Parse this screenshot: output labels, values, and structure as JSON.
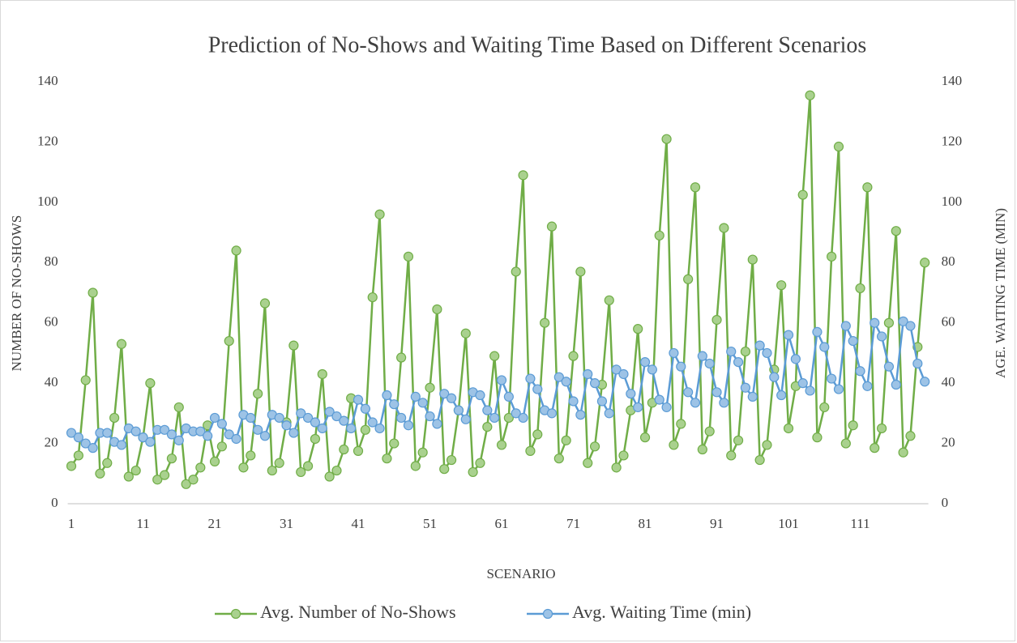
{
  "chart_data": {
    "type": "line",
    "title": "Prediction of No-Shows and Waiting Time Based on Different Scenarios",
    "x_label": "SCENARIO",
    "y_label": "NUMBER OF NO-SHOWS",
    "y2_label": "AGE. WAITING TIME (MIN)",
    "categories": [
      "1",
      null,
      null,
      null,
      null,
      null,
      null,
      null,
      null,
      null,
      "11",
      null,
      null,
      null,
      null,
      null,
      null,
      null,
      null,
      null,
      "21",
      null,
      null,
      null,
      null,
      null,
      null,
      null,
      null,
      null,
      "31",
      null,
      null,
      null,
      null,
      null,
      null,
      null,
      null,
      null,
      "41",
      null,
      null,
      null,
      null,
      null,
      null,
      null,
      null,
      null,
      "51",
      null,
      null,
      null,
      null,
      null,
      null,
      null,
      null,
      null,
      "61",
      null,
      null,
      null,
      null,
      null,
      null,
      null,
      null,
      null,
      "71",
      null,
      null,
      null,
      null,
      null,
      null,
      null,
      null,
      null,
      "81",
      null,
      null,
      null,
      null,
      null,
      null,
      null,
      null,
      null,
      "91",
      null,
      null,
      null,
      null,
      null,
      null,
      null,
      null,
      null,
      "101",
      null,
      null,
      null,
      null,
      null,
      null,
      null,
      null,
      null,
      "111",
      null,
      null,
      null,
      null,
      null,
      null,
      null,
      null,
      null
    ],
    "ylim": [
      0,
      140
    ],
    "yticks": [
      0,
      20,
      40,
      60,
      80,
      100,
      120,
      140
    ],
    "y2lim": [
      0,
      140
    ],
    "y2ticks": [
      0,
      20,
      40,
      60,
      80,
      100,
      120,
      140
    ],
    "legend": "bottom",
    "series": [
      {
        "name": "Avg. Number of No-Shows",
        "color": "#70ad47",
        "marker_color": "#a9d18e",
        "values": [
          12.5,
          16,
          41,
          70,
          10,
          13.5,
          28.5,
          53,
          9,
          11,
          22,
          40,
          8,
          9.5,
          15,
          32,
          6.5,
          8,
          12,
          26,
          14,
          19,
          54,
          84,
          12,
          16,
          36.5,
          66.5,
          11,
          13.5,
          27,
          52.5,
          10.5,
          12.5,
          21.5,
          43,
          9,
          11,
          18,
          35,
          17.5,
          24.5,
          68.5,
          96,
          15,
          20,
          48.5,
          82,
          12.5,
          17,
          38.5,
          64.5,
          11.5,
          14.5,
          31,
          56.5,
          10.5,
          13.5,
          25.5,
          49,
          19.5,
          28.5,
          77,
          109,
          17.5,
          23,
          60,
          92,
          15,
          21,
          49,
          77,
          13.5,
          19,
          39.5,
          67.5,
          12,
          16,
          31,
          58,
          22,
          33.5,
          89,
          121,
          19.5,
          26.5,
          74.5,
          105,
          18,
          24,
          61,
          91.5,
          16,
          21,
          50.5,
          81,
          14.5,
          19.5,
          44.5,
          72.5,
          25,
          39,
          102.5,
          135.5,
          22,
          32,
          82,
          118.5,
          20,
          26,
          71.5,
          105,
          18.5,
          25,
          60,
          90.5,
          17,
          22.5,
          52,
          80
        ]
      },
      {
        "name": "Avg. Waiting Time (min)",
        "color": "#5b9bd5",
        "marker_color": "#9dc3e6",
        "axis": "y2",
        "values": [
          23.5,
          22,
          20,
          18.5,
          23.5,
          23.5,
          20.5,
          19.5,
          25,
          24,
          22,
          20.5,
          24.5,
          24.5,
          23,
          21,
          25,
          24,
          24,
          22.5,
          28.5,
          26.5,
          23,
          21.5,
          29.5,
          28.5,
          24.5,
          22.5,
          29.5,
          28.5,
          26,
          23.5,
          30,
          28.5,
          27,
          25,
          30.5,
          29,
          27.5,
          25,
          34.5,
          31.5,
          27,
          25,
          36,
          33,
          28.5,
          26,
          35.5,
          33.5,
          29,
          26.5,
          36.5,
          35,
          31,
          28,
          37,
          36,
          31,
          28.5,
          41,
          35.5,
          30,
          28.5,
          41.5,
          38,
          31,
          30,
          42,
          40.5,
          34,
          29.5,
          43,
          40,
          34,
          30,
          44.5,
          43,
          36.5,
          32,
          47,
          44.5,
          34.5,
          32,
          50,
          45.5,
          37,
          33.5,
          49,
          46.5,
          37,
          33.5,
          50.5,
          47,
          38.5,
          35.5,
          52.5,
          50,
          42,
          36,
          56,
          48,
          40,
          37.5,
          57,
          52,
          41.5,
          38,
          59,
          54,
          44,
          39,
          60,
          55.5,
          45.5,
          39.5,
          60.5,
          59,
          46.5,
          40.5
        ]
      }
    ]
  }
}
